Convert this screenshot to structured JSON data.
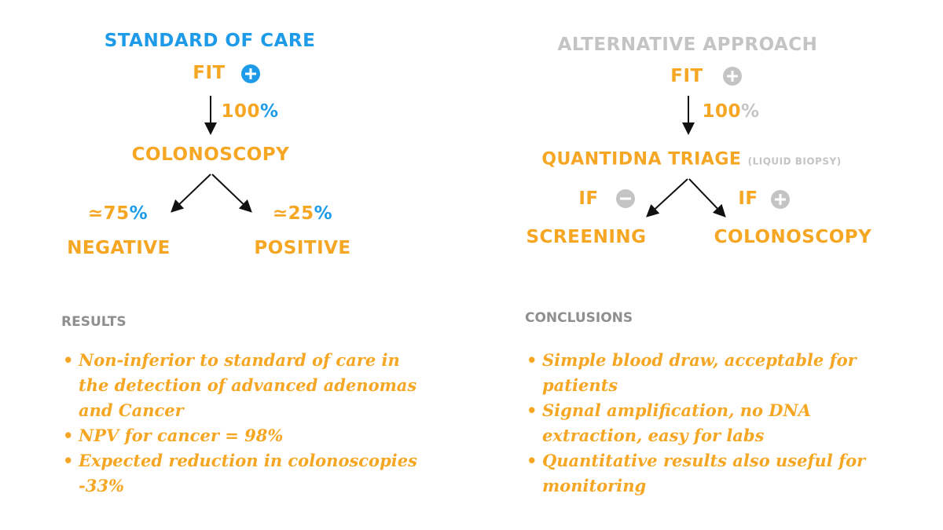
{
  "left": {
    "title": "STANDARD OF CARE",
    "start": "FIT",
    "arrow_label": {
      "number": "100",
      "unit": "%"
    },
    "step": "COLONOSCOPY",
    "branches": [
      {
        "number": "≃75",
        "unit": "%",
        "label": "NEGATIVE"
      },
      {
        "number": "≃25",
        "unit": "%",
        "label": "POSITIVE"
      }
    ]
  },
  "right": {
    "title": "ALTERNATIVE APPROACH",
    "start": "FIT",
    "arrow_label": {
      "number": "100",
      "unit": "%"
    },
    "step": "QUANTIDNA TRIAGE",
    "step_note": "(LIQUID BIOPSY)",
    "branches": [
      {
        "condition": "IF",
        "label": "SCREENING"
      },
      {
        "condition": "IF",
        "label": "COLONOSCOPY"
      }
    ]
  },
  "results": {
    "heading": "RESULTS",
    "items": [
      "Non-inferior to standard of care in the detection of advanced adenomas and Cancer",
      "NPV for cancer = 98%",
      "Expected reduction in colonoscopies -33%"
    ]
  },
  "conclusions": {
    "heading": "CONCLUSIONS",
    "items": [
      "Simple blood draw, acceptable for patients",
      "Signal amplification, no DNA extraction, easy for labs",
      "Quantitative results also useful for monitoring"
    ]
  }
}
